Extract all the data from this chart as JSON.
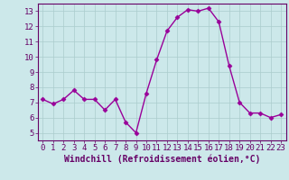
{
  "x": [
    0,
    1,
    2,
    3,
    4,
    5,
    6,
    7,
    8,
    9,
    10,
    11,
    12,
    13,
    14,
    15,
    16,
    17,
    18,
    19,
    20,
    21,
    22,
    23
  ],
  "y": [
    7.2,
    6.9,
    7.2,
    7.8,
    7.2,
    7.2,
    6.5,
    7.2,
    5.7,
    5.0,
    7.6,
    9.8,
    11.7,
    12.6,
    13.1,
    13.0,
    13.2,
    12.3,
    9.4,
    7.0,
    6.3,
    6.3,
    6.0,
    6.2
  ],
  "line_color": "#990099",
  "marker": "D",
  "marker_size": 2.5,
  "bg_color": "#cce8ea",
  "grid_color": "#aacccc",
  "xlabel": "Windchill (Refroidissement éolien,°C)",
  "xlim": [
    -0.5,
    23.5
  ],
  "ylim": [
    4.5,
    13.5
  ],
  "yticks": [
    5,
    6,
    7,
    8,
    9,
    10,
    11,
    12,
    13
  ],
  "xticks": [
    0,
    1,
    2,
    3,
    4,
    5,
    6,
    7,
    8,
    9,
    10,
    11,
    12,
    13,
    14,
    15,
    16,
    17,
    18,
    19,
    20,
    21,
    22,
    23
  ],
  "tick_label_fontsize": 6.5,
  "xlabel_fontsize": 7,
  "label_color": "#660066",
  "spine_color": "#660066",
  "linewidth": 1.0
}
